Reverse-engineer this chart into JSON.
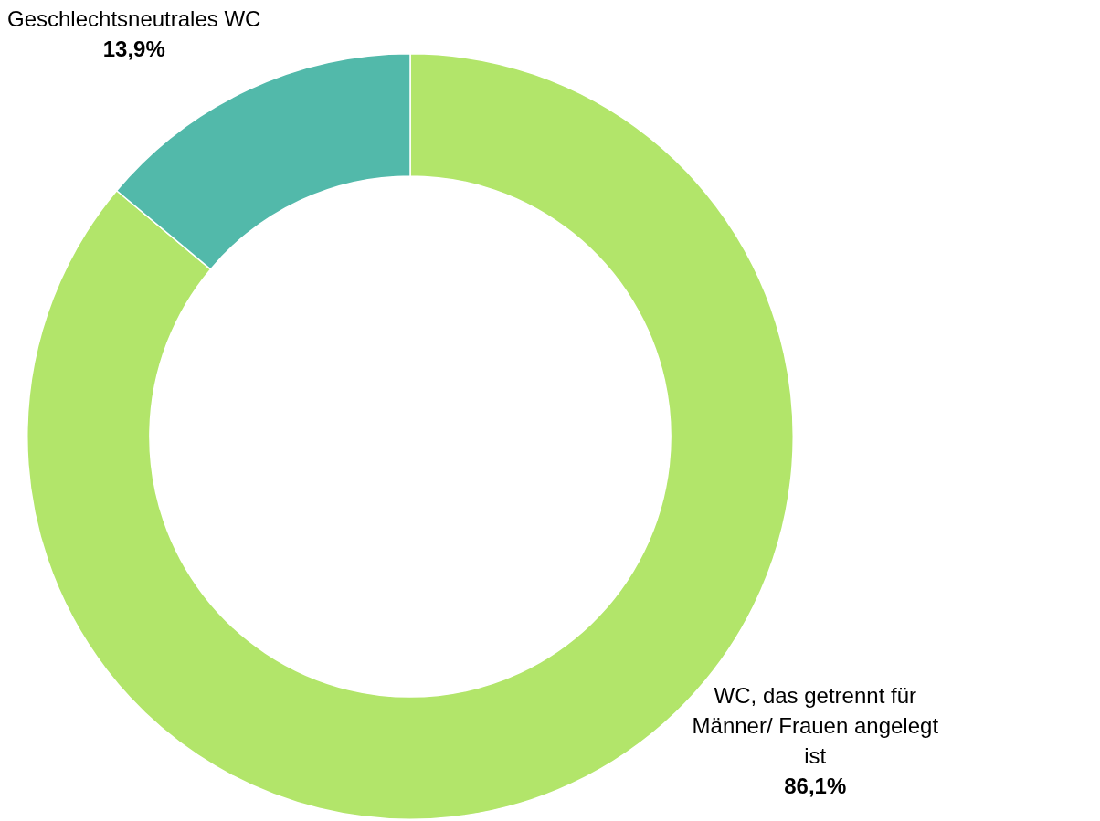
{
  "chart_data": {
    "type": "donut",
    "categories": [
      "WC, das getrennt für Männer/ Frauen angelegt ist",
      "Geschlechtsneutrales WC"
    ],
    "values": [
      86.1,
      13.9
    ],
    "colors": [
      "#b2e56a",
      "#52b9aa"
    ],
    "value_labels": [
      "86,1%",
      "13,9%"
    ],
    "legend": false
  }
}
